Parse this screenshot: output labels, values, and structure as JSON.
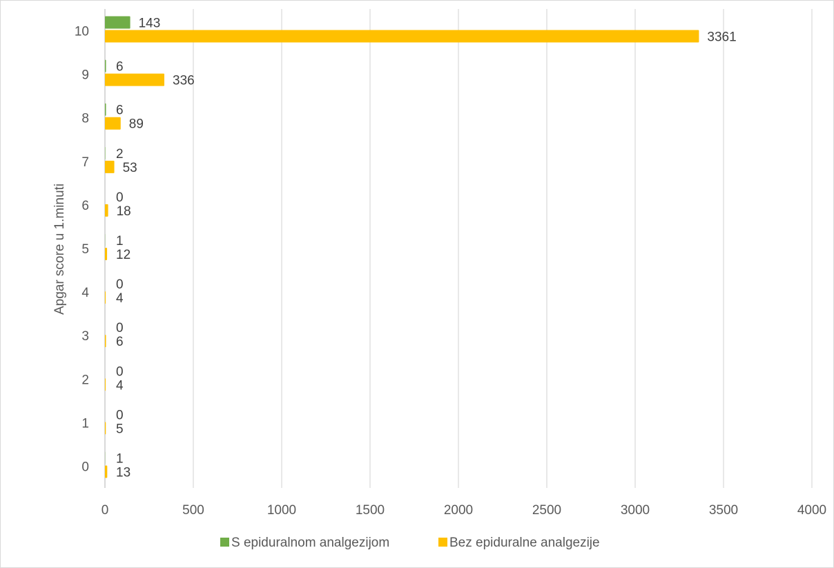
{
  "chart_data": {
    "type": "bar",
    "orientation": "horizontal",
    "title": "",
    "ylabel": "Apgar score u 1.minuti",
    "xlabel": "",
    "categories": [
      "0",
      "1",
      "2",
      "3",
      "4",
      "5",
      "6",
      "7",
      "8",
      "9",
      "10"
    ],
    "series": [
      {
        "name": "S epiduralnom analgezijom",
        "color": "#70ad47",
        "values": [
          1,
          0,
          0,
          0,
          0,
          1,
          0,
          2,
          6,
          6,
          143
        ]
      },
      {
        "name": "Bez epiduralne analgezije",
        "color": "#ffc000",
        "values": [
          13,
          5,
          4,
          6,
          4,
          12,
          18,
          53,
          89,
          336,
          3361
        ]
      }
    ],
    "xlim": [
      0,
      4000
    ],
    "xticks": [
      0,
      500,
      1000,
      1500,
      2000,
      2500,
      3000,
      3500,
      4000
    ],
    "grid": "vertical",
    "legend_position": "bottom",
    "data_labels": true
  }
}
